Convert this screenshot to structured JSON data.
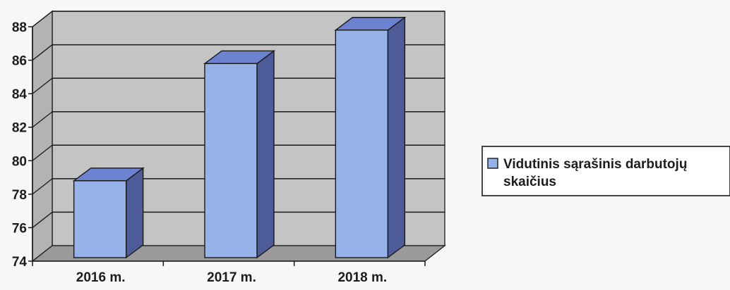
{
  "chart_data": {
    "type": "bar",
    "style": "3d-column",
    "categories": [
      "2016 m.",
      "2017 m.",
      "2018 m."
    ],
    "series": [
      {
        "name": "Vidutinis sąrašinis darbutojų skaičius",
        "values": [
          78.8,
          85.8,
          87.8
        ],
        "color": "#95b3e8"
      }
    ],
    "ylim": [
      74,
      88
    ],
    "yticks": [
      74,
      76,
      78,
      80,
      82,
      84,
      86,
      88
    ],
    "grid": true,
    "legend_position": "right",
    "legend_lines": [
      "Vidutinis sąrašinis darbutojų",
      "skaičius"
    ],
    "colors": {
      "wall": "#c4c4c4",
      "floor": "#9a9a9a",
      "bar_front": "#95b3e8",
      "bar_side": "#4d5c99",
      "bar_top": "#6b82d0",
      "outline": "#1a1a1a"
    }
  }
}
